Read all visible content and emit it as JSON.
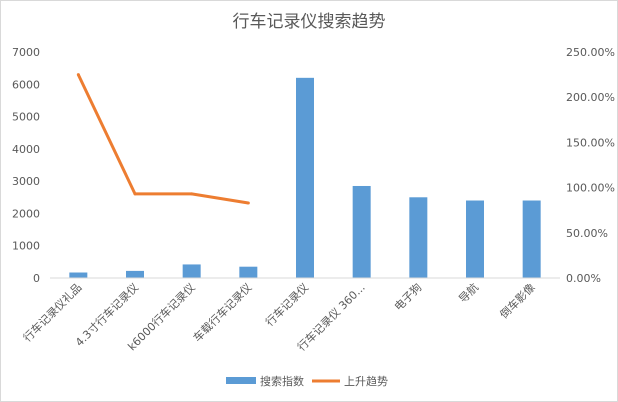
{
  "chart_data": {
    "type": "bar",
    "title": "行车记录仪搜索趋势",
    "categories": [
      "行车记录仪礼品",
      "4.3寸行车记录仪",
      "k6000行车记录仪",
      "车载行车记录仪",
      "行车记录仪",
      "行车记录仪 360...",
      "电子狗",
      "导航",
      "倒车影像"
    ],
    "series": [
      {
        "name": "搜索指数",
        "type": "bar",
        "axis": "left",
        "color": "#5B9BD5",
        "values": [
          170,
          220,
          420,
          350,
          6200,
          2850,
          2500,
          2400,
          2400
        ]
      },
      {
        "name": "上升趋势",
        "type": "line",
        "axis": "right",
        "color": "#ED7D31",
        "values": [
          2.25,
          0.93,
          0.93,
          0.83,
          null,
          null,
          null,
          null,
          null
        ]
      }
    ],
    "y_left": {
      "min": 0,
      "max": 7000,
      "step": 1000
    },
    "y_right": {
      "min": 0,
      "max": 2.5,
      "step": 0.5,
      "format": "percent"
    },
    "y_left_ticks": [
      "0",
      "1000",
      "2000",
      "3000",
      "4000",
      "5000",
      "6000",
      "7000"
    ],
    "y_right_ticks": [
      "0.00%",
      "50.00%",
      "100.00%",
      "150.00%",
      "200.00%",
      "250.00%"
    ],
    "grid": false,
    "legend": "bottom"
  }
}
